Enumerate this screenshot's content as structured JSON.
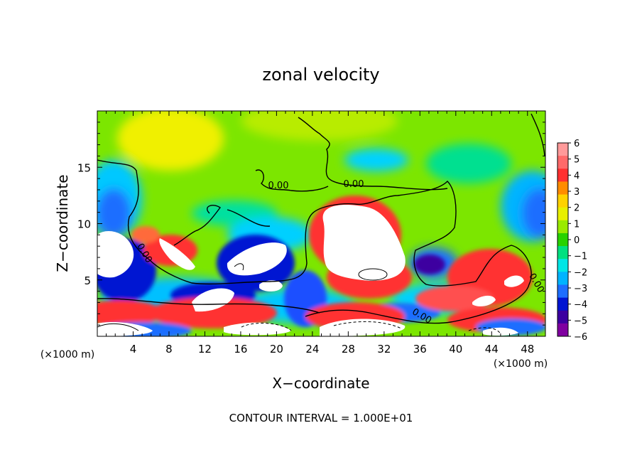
{
  "chart_data": {
    "type": "heatmap",
    "title": "zonal velocity",
    "xlabel": "X−coordinate",
    "ylabel": "Z−coordinate",
    "xunit_left": "(×1000 m)",
    "xunit_right": "(×1000 m)",
    "footer": "CONTOUR INTERVAL = 1.000E+01",
    "xlim": [
      0,
      50
    ],
    "ylim": [
      0,
      20
    ],
    "x_ticks": [
      4,
      8,
      12,
      16,
      20,
      24,
      28,
      32,
      36,
      40,
      44,
      48
    ],
    "x_tick_labels": [
      "4",
      "8",
      "12",
      "16",
      "20",
      "24",
      "28",
      "32",
      "36",
      "40",
      "44",
      "48"
    ],
    "y_ticks": [
      5,
      10,
      15
    ],
    "y_tick_labels": [
      "5",
      "10",
      "15"
    ],
    "colorbar": {
      "min": -6,
      "max": 6,
      "ticks": [
        6,
        5,
        4,
        3,
        2,
        1,
        0,
        -1,
        -2,
        -3,
        -4,
        -5,
        -6
      ],
      "tick_labels": [
        "6",
        "5",
        "4",
        "3",
        "2",
        "1",
        "0",
        "−1",
        "−2",
        "−3",
        "−4",
        "−5",
        "−6"
      ],
      "colors": [
        "#ff9a9a",
        "#ff6a6a",
        "#ff3030",
        "#ff8c00",
        "#ffd200",
        "#e8f000",
        "#9aea00",
        "#28d200",
        "#00e080",
        "#00e6e6",
        "#00b4ff",
        "#1e6eff",
        "#0014d2",
        "#3c00a0",
        "#8000a0"
      ]
    },
    "contour_labels": [
      "0.00",
      "0.00",
      "0.00",
      "0.00",
      "0.00"
    ]
  }
}
